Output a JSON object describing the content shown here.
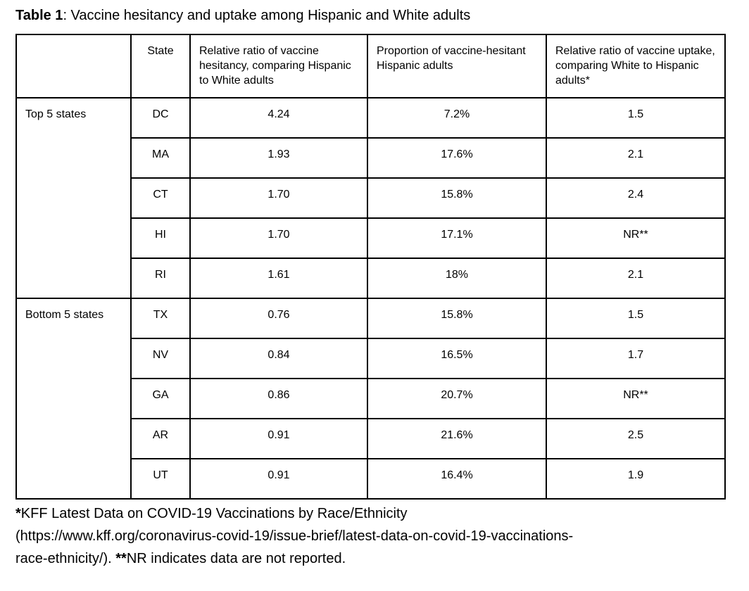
{
  "title": {
    "label_bold": "Table 1",
    "label_rest": ": Vaccine hesitancy and uptake among Hispanic and White adults"
  },
  "table": {
    "headers": {
      "group": "",
      "state": "State",
      "hesitancy": "Relative ratio of vaccine hesitancy, comparing Hispanic to White adults",
      "proportion": "Proportion of vaccine-hesitant Hispanic adults",
      "uptake": "Relative ratio of vaccine uptake, comparing White to Hispanic adults*"
    },
    "groups": [
      {
        "label": "Top 5 states",
        "rows": [
          {
            "state": "DC",
            "hesitancy": "4.24",
            "proportion": "7.2%",
            "uptake": "1.5"
          },
          {
            "state": "MA",
            "hesitancy": "1.93",
            "proportion": "17.6%",
            "uptake": "2.1"
          },
          {
            "state": "CT",
            "hesitancy": "1.70",
            "proportion": "15.8%",
            "uptake": "2.4"
          },
          {
            "state": "HI",
            "hesitancy": "1.70",
            "proportion": "17.1%",
            "uptake": "NR**"
          },
          {
            "state": "RI",
            "hesitancy": "1.61",
            "proportion": "18%",
            "uptake": "2.1"
          }
        ]
      },
      {
        "label": "Bottom 5 states",
        "rows": [
          {
            "state": "TX",
            "hesitancy": "0.76",
            "proportion": "15.8%",
            "uptake": "1.5"
          },
          {
            "state": "NV",
            "hesitancy": "0.84",
            "proportion": "16.5%",
            "uptake": "1.7"
          },
          {
            "state": "GA",
            "hesitancy": "0.86",
            "proportion": "20.7%",
            "uptake": "NR**"
          },
          {
            "state": "AR",
            "hesitancy": "0.91",
            "proportion": "21.6%",
            "uptake": "2.5"
          },
          {
            "state": "UT",
            "hesitancy": "0.91",
            "proportion": "16.4%",
            "uptake": "1.9"
          }
        ]
      }
    ]
  },
  "footnote": {
    "line1_marker": "*",
    "line1_text": "KFF Latest Data on COVID-19 Vaccinations by Race/Ethnicity",
    "line2_text": "(https://www.kff.org/coronavirus-covid-19/issue-brief/latest-data-on-covid-19-vaccinations-",
    "line3_pre": "race-ethnicity/). ",
    "line3_marker": "**",
    "line3_text": "NR indicates data are not reported."
  },
  "colors": {
    "text": "#000000",
    "border": "#000000",
    "background": "#ffffff"
  }
}
